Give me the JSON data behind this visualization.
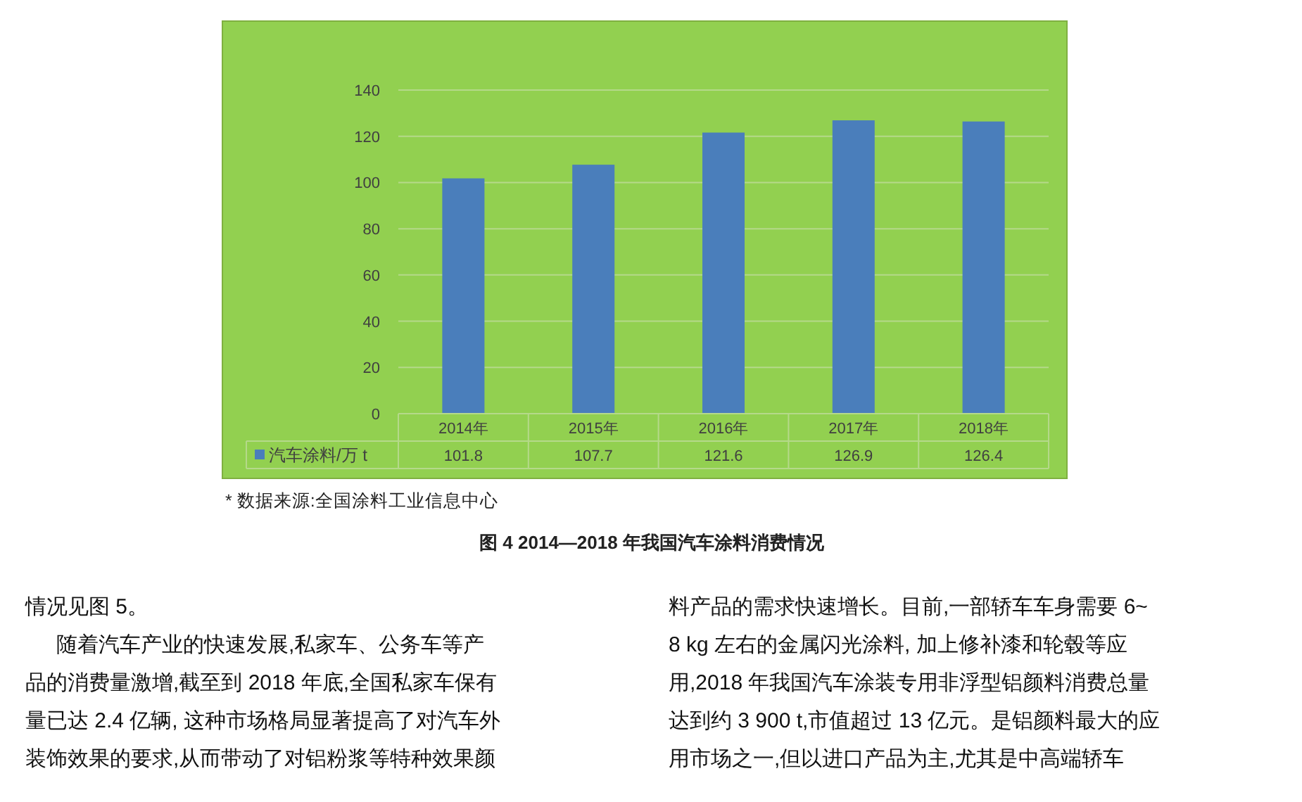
{
  "chart_data": {
    "type": "bar",
    "title": "图 4 2014—2018 年我国汽车涂料消费情况",
    "categories": [
      "2014年",
      "2015年",
      "2016年",
      "2017年",
      "2018年"
    ],
    "series": [
      {
        "name": "汽车涂料/万 t",
        "color": "#4a7ebb",
        "values": [
          101.8,
          107.7,
          121.6,
          126.9,
          126.4
        ]
      }
    ],
    "ylim": [
      0,
      140
    ],
    "yticks": [
      0,
      20,
      40,
      60,
      80,
      100,
      120,
      140
    ],
    "grid": "y",
    "data_labels": true,
    "legend": "bottom",
    "annotations": [
      "* 数据来源:全国涂料工业信息中心",
      "情况见图 5。",
      "随着汽车产业的快速发展,私家车、公务车等产",
      "品的消费量激增,截至到 2018 年底,全国私家车保有",
      "量已达 2.4 亿辆, 这种市场格局显著提高了对汽车外",
      "装饰效果的要求,从而带动了对铝粉浆等特种效果颜",
      "料产品的需求快速增长。目前,一部轿车车身需要 6~",
      "8 kg 左右的金属闪光涂料, 加上修补漆和轮毂等应",
      "用,2018 年我国汽车涂装专用非浮型铝颜料消费总量",
      "达到约 3 900 t,市值超过 13 亿元。是铝颜料最大的应",
      "用市场之一,但以进口产品为主,尤其是中高端轿车"
    ]
  }
}
